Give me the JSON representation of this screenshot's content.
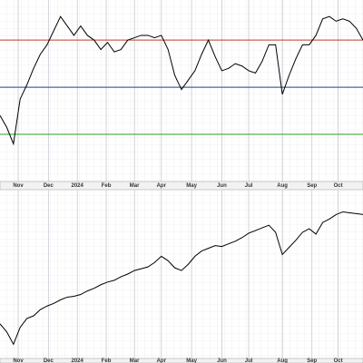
{
  "chart_data": [
    {
      "type": "line",
      "x": [
        0,
        1,
        2,
        3,
        4,
        5,
        6,
        7,
        8,
        9,
        10,
        11,
        12,
        13,
        14,
        15,
        16,
        17,
        18,
        19,
        20,
        21,
        22,
        23,
        24,
        25,
        26,
        27,
        28,
        29,
        30,
        31,
        32,
        33,
        34,
        35,
        36,
        37,
        38,
        39,
        40,
        41,
        42,
        43,
        44,
        45,
        46,
        47,
        48,
        49,
        50,
        51,
        52,
        53,
        54
      ],
      "values": [
        38,
        33,
        26,
        45,
        51,
        58,
        64,
        68,
        74,
        80,
        76,
        72,
        76,
        72,
        70,
        66,
        69,
        65,
        66,
        70,
        71,
        72,
        72,
        71,
        72,
        66,
        55,
        49,
        53,
        57,
        64,
        70,
        63,
        57,
        58,
        60,
        59,
        57,
        56,
        61,
        68,
        68,
        47,
        55,
        62,
        68,
        68,
        72,
        79,
        80,
        78,
        79,
        78,
        75,
        70
      ],
      "color": "#000000",
      "xlim": [
        0,
        54
      ],
      "ylim": [
        10,
        87
      ],
      "xticks": [
        {
          "value": 2.7,
          "label": "Nov"
        },
        {
          "value": 7.2,
          "label": "Dec"
        },
        {
          "value": 11.5,
          "label": "2024"
        },
        {
          "value": 15.8,
          "label": "Feb"
        },
        {
          "value": 20,
          "label": "Mar"
        },
        {
          "value": 24,
          "label": "Apr"
        },
        {
          "value": 28.5,
          "label": "May"
        },
        {
          "value": 33,
          "label": "Jun"
        },
        {
          "value": 37,
          "label": "Jul"
        },
        {
          "value": 42,
          "label": "Aug"
        },
        {
          "value": 46.4,
          "label": "Sep"
        },
        {
          "value": 50.3,
          "label": "Oct"
        }
      ],
      "hlines": [
        {
          "value": 70,
          "color": "#c0392b"
        },
        {
          "value": 50,
          "color": "#2c3e8f"
        },
        {
          "value": 30,
          "color": "#27a027"
        }
      ]
    },
    {
      "type": "line",
      "x": [
        0,
        1,
        2,
        3,
        4,
        5,
        6,
        7,
        8,
        9,
        10,
        11,
        12,
        13,
        14,
        15,
        16,
        17,
        18,
        19,
        20,
        21,
        22,
        23,
        24,
        25,
        26,
        27,
        28,
        29,
        30,
        31,
        32,
        33,
        34,
        35,
        36,
        37,
        38,
        39,
        40,
        41,
        42,
        43,
        44,
        45,
        46,
        47,
        48,
        49,
        50,
        51,
        52,
        53,
        54
      ],
      "values": [
        4390,
        4300,
        4160,
        4350,
        4450,
        4480,
        4550,
        4590,
        4620,
        4660,
        4690,
        4700,
        4720,
        4760,
        4790,
        4830,
        4860,
        4880,
        4920,
        4950,
        4990,
        5010,
        5030,
        5080,
        5150,
        5100,
        5020,
        4990,
        5060,
        5150,
        5210,
        5240,
        5270,
        5260,
        5290,
        5320,
        5360,
        5410,
        5440,
        5470,
        5500,
        5420,
        5170,
        5250,
        5330,
        5420,
        5460,
        5400,
        5530,
        5570,
        5620,
        5650,
        5640,
        5630,
        5620
      ],
      "color": "#000000",
      "xlim": [
        0,
        54
      ],
      "ylim": [
        4000,
        5900
      ],
      "xticks": [
        {
          "value": 2.7,
          "label": "Nov"
        },
        {
          "value": 7.2,
          "label": "Dec"
        },
        {
          "value": 11.5,
          "label": "2024"
        },
        {
          "value": 15.8,
          "label": "Feb"
        },
        {
          "value": 20,
          "label": "Mar"
        },
        {
          "value": 24,
          "label": "Apr"
        },
        {
          "value": 28.5,
          "label": "May"
        },
        {
          "value": 33,
          "label": "Jun"
        },
        {
          "value": 37,
          "label": "Jul"
        },
        {
          "value": 42,
          "label": "Aug"
        },
        {
          "value": 46.4,
          "label": "Sep"
        },
        {
          "value": 50.3,
          "label": "Oct"
        }
      ]
    }
  ]
}
